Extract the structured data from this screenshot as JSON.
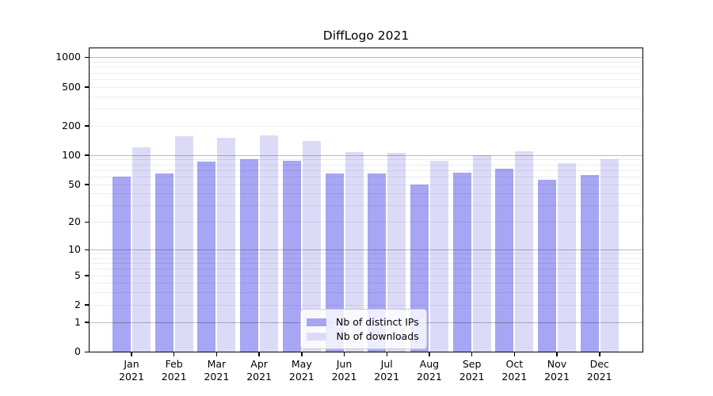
{
  "title": "DiffLogo 2021",
  "colors": {
    "distinct_ips": "#a6a6f4",
    "downloads": "#dbdbf8",
    "grid_major": "rgba(0,0,0,0.26)",
    "grid_minor": "rgba(0,0,0,0.07)",
    "spine": "#000000",
    "text": "#000000",
    "legend_bg": "rgba(255,255,255,0.8)",
    "legend_border": "#cccccc"
  },
  "y_axis": {
    "tick_labels": [
      "1000",
      "500",
      "200",
      "100",
      "50",
      "20",
      "10",
      "5",
      "2",
      "1",
      "0"
    ]
  },
  "x_axis": {
    "year_line": "2021"
  },
  "legend": {
    "items": [
      "Nb of distinct IPs",
      "Nb of downloads"
    ]
  },
  "chart_data": {
    "type": "bar",
    "title": "DiffLogo 2021",
    "categories": [
      "Jan 2021",
      "Feb 2021",
      "Mar 2021",
      "Apr 2021",
      "May 2021",
      "Jun 2021",
      "Jul 2021",
      "Aug 2021",
      "Sep 2021",
      "Oct 2021",
      "Nov 2021",
      "Dec 2021"
    ],
    "series": [
      {
        "name": "Nb of distinct IPs",
        "color": "#a6a6f4",
        "values": [
          60,
          65,
          85,
          90,
          88,
          64,
          64,
          50,
          66,
          72,
          56,
          62
        ]
      },
      {
        "name": "Nb of downloads",
        "color": "#dbdbf8",
        "values": [
          120,
          155,
          150,
          160,
          140,
          108,
          106,
          87,
          100,
          110,
          82,
          90
        ]
      }
    ],
    "xlabel": "",
    "ylabel": "",
    "yscale": "log1p",
    "ylim": [
      0,
      1000
    ],
    "y_ticks": [
      0,
      1,
      2,
      5,
      10,
      20,
      50,
      100,
      200,
      500,
      1000
    ],
    "grid": "on",
    "grid_major_at": [
      1,
      10,
      100,
      1000
    ],
    "legend_position": "lower center"
  }
}
